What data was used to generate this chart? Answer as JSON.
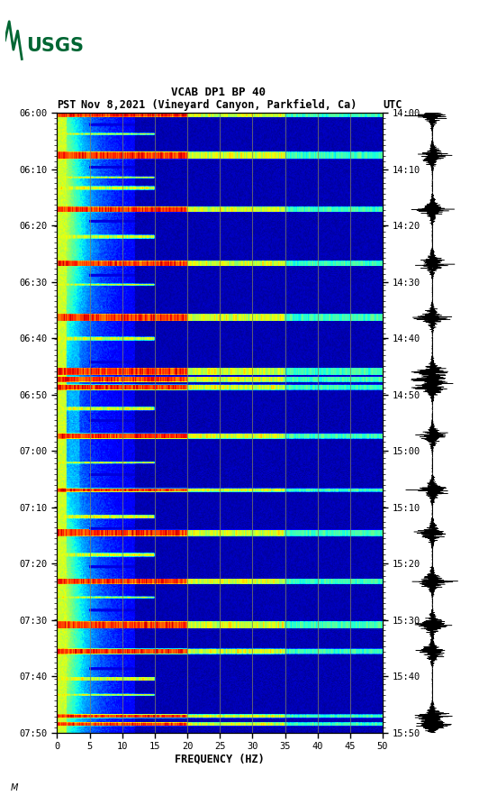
{
  "title_line1": "VCAB DP1 BP 40",
  "title_line2_pst": "PST",
  "title_line2_date": "Nov 8,2021 (Vineyard Canyon, Parkfield, Ca)",
  "title_line2_utc": "UTC",
  "xlabel": "FREQUENCY (HZ)",
  "freq_min": 0,
  "freq_max": 50,
  "left_times": [
    "06:00",
    "06:10",
    "06:20",
    "06:30",
    "06:40",
    "06:50",
    "07:00",
    "07:10",
    "07:20",
    "07:30",
    "07:40",
    "07:50"
  ],
  "right_times": [
    "14:00",
    "14:10",
    "14:20",
    "14:30",
    "14:40",
    "14:50",
    "15:00",
    "15:10",
    "15:20",
    "15:30",
    "15:40",
    "15:50"
  ],
  "xticks": [
    0,
    5,
    10,
    15,
    20,
    25,
    30,
    35,
    40,
    45,
    50
  ],
  "background_color": "#ffffff",
  "usgs_green": "#006633",
  "colormap": "jet",
  "fig_width": 5.52,
  "fig_height": 8.93,
  "grid_color": "#808040",
  "n_time": 700,
  "n_freq": 400,
  "total_minutes": 115
}
